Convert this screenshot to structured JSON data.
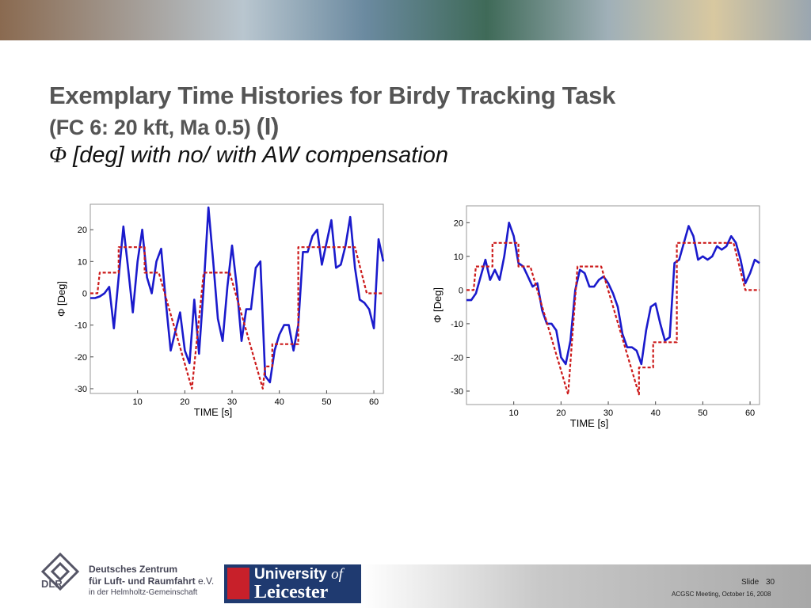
{
  "slide": {
    "title_line1": "Exemplary Time Histories for Birdy Tracking Task",
    "title_line2": "(FC 6: 20 kft, Ma 0.5)",
    "title_part": "(I)",
    "subtitle_symbol": "Φ",
    "subtitle": "[deg] with no/ with AW compensation",
    "dlr_name": "Deutsches Zentrum",
    "dlr_name2": "für Luft- und Raumfahrt",
    "dlr_ev": "e.V.",
    "dlr_sub": "in der Helmholtz-Gemeinschaft",
    "dlr_abbr": "DLR",
    "uni1": "University",
    "uni_of": "of",
    "uni2": "Leicester",
    "slide_label": "Slide",
    "slide_number": "30",
    "meeting": "ACGSC Meeting, October 16, 2008"
  },
  "chart_data": [
    {
      "type": "line",
      "xlabel": "TIME [s]",
      "ylabel": "Φ [Deg]",
      "xlim": [
        0,
        62
      ],
      "ylim": [
        -31.5,
        28
      ],
      "xticks": [
        10,
        20,
        30,
        40,
        50,
        60
      ],
      "yticks": [
        -30,
        -20,
        -10,
        0,
        10,
        20
      ],
      "series": [
        {
          "color": "#1a1acc",
          "dash": false,
          "x": [
            0,
            1,
            2,
            3,
            4,
            5,
            6,
            7,
            8,
            9,
            10,
            11,
            12,
            13,
            14,
            15,
            16,
            17,
            18,
            19,
            20,
            21,
            22,
            23,
            24,
            25,
            26,
            27,
            28,
            29,
            30,
            31,
            32,
            33,
            34,
            35,
            36,
            37,
            38,
            39,
            40,
            41,
            42,
            43,
            44,
            45,
            46,
            47,
            48,
            49,
            50,
            51,
            52,
            53,
            54,
            55,
            56,
            57,
            58,
            59,
            60,
            61,
            62
          ],
          "values": [
            -1.5,
            -1.5,
            -1,
            0,
            2,
            -11,
            5,
            21,
            8,
            -6,
            10,
            20,
            5,
            0,
            10,
            14,
            -3,
            -18,
            -12,
            -6,
            -18,
            -22,
            -2,
            -19,
            2,
            27,
            10,
            -8,
            -15,
            2,
            15,
            2,
            -15,
            -5,
            -5,
            8,
            10,
            -26,
            -28,
            -18,
            -13,
            -10,
            -10,
            -18,
            -10,
            13,
            13,
            18,
            20,
            9,
            16,
            23,
            8,
            9,
            15,
            24,
            8,
            -2,
            -3,
            -5,
            -11,
            17,
            10
          ]
        },
        {
          "color": "#cc1a1a",
          "dash": true,
          "x": [
            0,
            1.5,
            2,
            6,
            6,
            11.5,
            11.5,
            14.5,
            21.5,
            24,
            29.5,
            36.5,
            37,
            38.5,
            38.5,
            44,
            44,
            56,
            58.5,
            62
          ],
          "values": [
            0,
            0,
            6.5,
            6.5,
            14.5,
            14.5,
            6.5,
            6.5,
            -30,
            6.5,
            6.5,
            -30,
            -23,
            -23,
            -16,
            -16,
            14.5,
            14.5,
            0,
            0
          ]
        }
      ]
    },
    {
      "type": "line",
      "xlabel": "TIME [s]",
      "ylabel": "Φ [Deg]",
      "xlim": [
        0,
        62
      ],
      "ylim": [
        -34,
        25
      ],
      "xticks": [
        10,
        20,
        30,
        40,
        50,
        60
      ],
      "yticks": [
        -30,
        -20,
        -10,
        0,
        10,
        20
      ],
      "series": [
        {
          "color": "#1a1acc",
          "dash": false,
          "x": [
            0,
            1,
            2,
            3,
            4,
            5,
            6,
            7,
            8,
            9,
            10,
            11,
            12,
            13,
            14,
            15,
            16,
            17,
            18,
            19,
            20,
            21,
            22,
            23,
            24,
            25,
            26,
            27,
            28,
            29,
            30,
            31,
            32,
            33,
            34,
            35,
            36,
            37,
            38,
            39,
            40,
            41,
            42,
            43,
            44,
            45,
            46,
            47,
            48,
            49,
            50,
            51,
            52,
            53,
            54,
            55,
            56,
            57,
            58,
            59,
            60,
            61,
            62
          ],
          "values": [
            -3,
            -3,
            -1,
            4,
            9,
            3,
            6,
            3,
            10,
            20,
            16,
            8,
            7,
            4,
            1,
            2,
            -6,
            -10,
            -10,
            -12,
            -20,
            -22,
            -15,
            0,
            6,
            5,
            1,
            1,
            3,
            4,
            2,
            -1,
            -5,
            -13,
            -17,
            -17,
            -18,
            -22,
            -12,
            -5,
            -4,
            -10,
            -15,
            -14,
            8,
            9,
            14,
            19,
            16,
            9,
            10,
            9,
            10,
            13,
            12,
            13,
            16,
            14,
            9,
            2,
            5,
            9,
            8
          ]
        },
        {
          "color": "#cc1a1a",
          "dash": true,
          "x": [
            0,
            1.5,
            2,
            5.5,
            5.5,
            11,
            11,
            13.5,
            21.5,
            23.5,
            28.5,
            36.5,
            36.5,
            39.5,
            39.5,
            44.5,
            44.5,
            56.5,
            59,
            62
          ],
          "values": [
            0,
            0,
            7,
            7,
            14,
            14,
            7,
            7,
            -31,
            7,
            7,
            -31,
            -23,
            -23,
            -15.5,
            -15.5,
            14,
            14,
            0,
            0
          ]
        }
      ]
    }
  ]
}
